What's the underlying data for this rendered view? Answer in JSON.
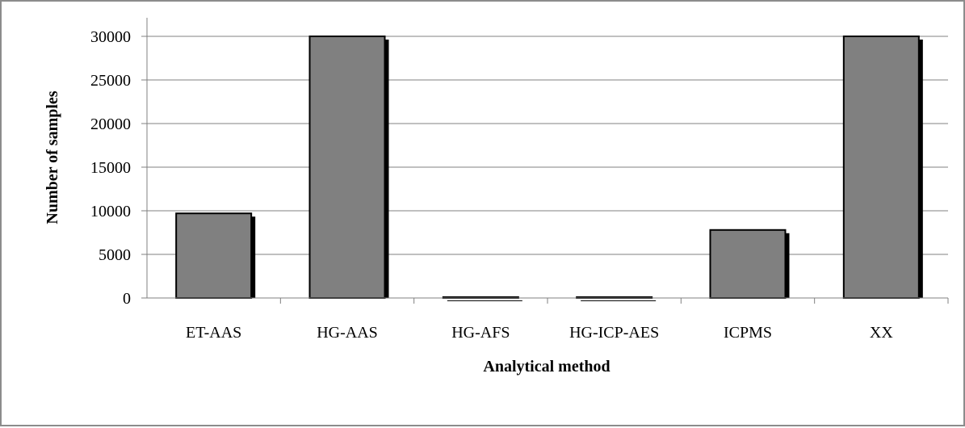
{
  "chart_data": {
    "type": "bar",
    "categories": [
      "ET-AAS",
      "HG-AAS",
      "HG-AFS",
      "HG-ICP-AES",
      "ICPMS",
      "XX"
    ],
    "values": [
      9700,
      30000,
      100,
      100,
      7800,
      30000
    ],
    "xlabel": "Analytical method",
    "ylabel": "Number of samples",
    "ylim": [
      0,
      30000
    ],
    "yticks": [
      0,
      5000,
      10000,
      15000,
      20000,
      25000,
      30000
    ],
    "ytick_labels": [
      "0",
      "5000",
      "10000",
      "15000",
      "20000",
      "25000",
      "30000"
    ],
    "grid": true,
    "legend": "none",
    "colors": {
      "bar": "#808080",
      "bar_shadow": "#000000",
      "grid": "#808080",
      "axis": "#808080"
    }
  }
}
